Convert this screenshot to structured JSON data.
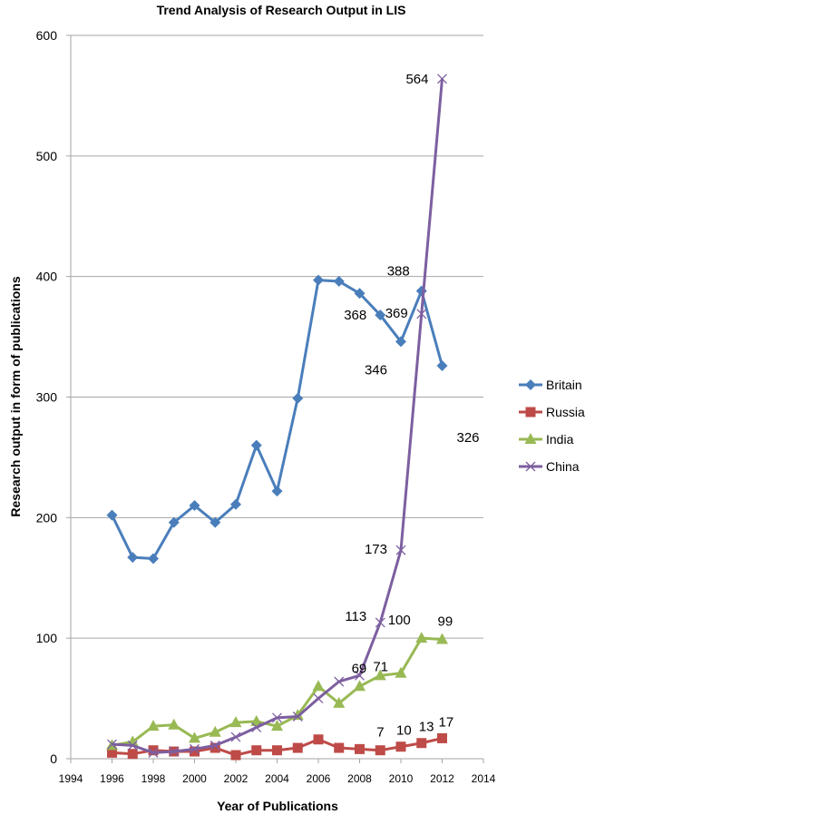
{
  "chart_data": {
    "type": "line",
    "title": "Trend Analysis of Research Output in LIS",
    "xlabel": "Year of Publications",
    "ylabel": "Research output in form of publications",
    "xlim": [
      1994,
      2014
    ],
    "ylim": [
      0,
      600
    ],
    "xticks": [
      "1994",
      "1996",
      "1998",
      "2000",
      "2002",
      "2004",
      "2006",
      "2008",
      "2010",
      "2012",
      "2014"
    ],
    "yticks": [
      "0",
      "100",
      "200",
      "300",
      "400",
      "500",
      "600"
    ],
    "grid": "horizontal",
    "legend_position": "right",
    "x": [
      1996,
      1997,
      1998,
      1999,
      2000,
      2001,
      2002,
      2003,
      2004,
      2005,
      2006,
      2007,
      2008,
      2009,
      2010,
      2011,
      2012
    ],
    "series": [
      {
        "name": "Britain",
        "color": "#4a7ebb",
        "marker": "diamond",
        "values": [
          202,
          167,
          166,
          196,
          210,
          196,
          211,
          260,
          222,
          299,
          397,
          396,
          386,
          368,
          346,
          388,
          326
        ],
        "data_labels": {
          "2009": "368",
          "2010": "346",
          "2011": "388",
          "2012": "326"
        }
      },
      {
        "name": "Russia",
        "color": "#be4b48",
        "marker": "square",
        "values": [
          5,
          4,
          7,
          6,
          6,
          9,
          3,
          7,
          7,
          9,
          16,
          9,
          8,
          7,
          10,
          13,
          17
        ],
        "data_labels": {
          "2009": "7",
          "2010": "10",
          "2011": "13",
          "2012": "17"
        }
      },
      {
        "name": "India",
        "color": "#98b954",
        "marker": "triangle",
        "values": [
          11,
          14,
          27,
          28,
          17,
          22,
          30,
          31,
          27,
          36,
          60,
          46,
          60,
          69,
          71,
          100,
          99
        ],
        "data_labels": {
          "2009": "69",
          "2010": "71",
          "2011": "100",
          "2012": "99"
        }
      },
      {
        "name": "China",
        "color": "#7d5fa0",
        "marker": "x",
        "values": [
          12,
          11,
          5,
          6,
          8,
          11,
          18,
          26,
          34,
          35,
          50,
          64,
          69,
          113,
          173,
          369,
          564
        ],
        "data_labels": {
          "2009": "113",
          "2010": "173",
          "2011": "369",
          "2012": "564"
        }
      }
    ]
  }
}
